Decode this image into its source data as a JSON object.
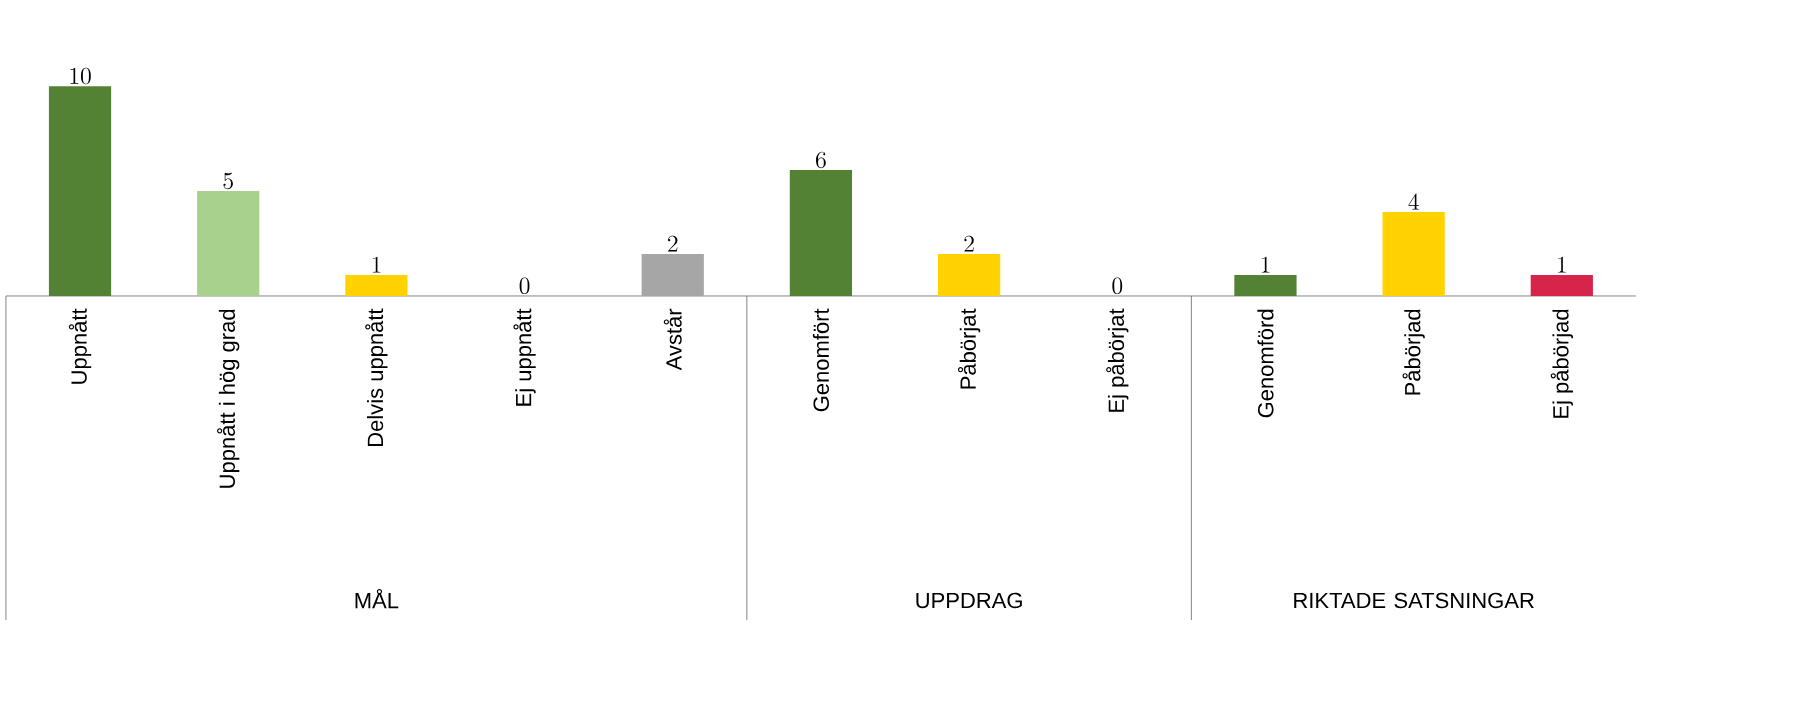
{
  "chart_data": {
    "type": "bar",
    "categories": [
      "Uppnått",
      "Uppnått i hög grad",
      "Delvis uppnått",
      "Ej uppnått",
      "Avstår",
      "Genomfört",
      "Påbörjat",
      "Ej påbörjat",
      "Genomförd",
      "Påbörjad",
      "Ej påbörjad"
    ],
    "values": [
      10,
      5,
      1,
      0,
      2,
      6,
      2,
      0,
      1,
      4,
      1
    ],
    "colors": [
      "#548235",
      "#a9d18e",
      "#ffd200",
      "#ffd200",
      "#a6a6a6",
      "#548235",
      "#ffd200",
      "#ffd200",
      "#548235",
      "#ffd200",
      "#d6254a"
    ],
    "data_labels": true,
    "annotations": [
      "MÅL",
      "UPPDRAG",
      "RIKTADE SATSNINGAR"
    ]
  }
}
